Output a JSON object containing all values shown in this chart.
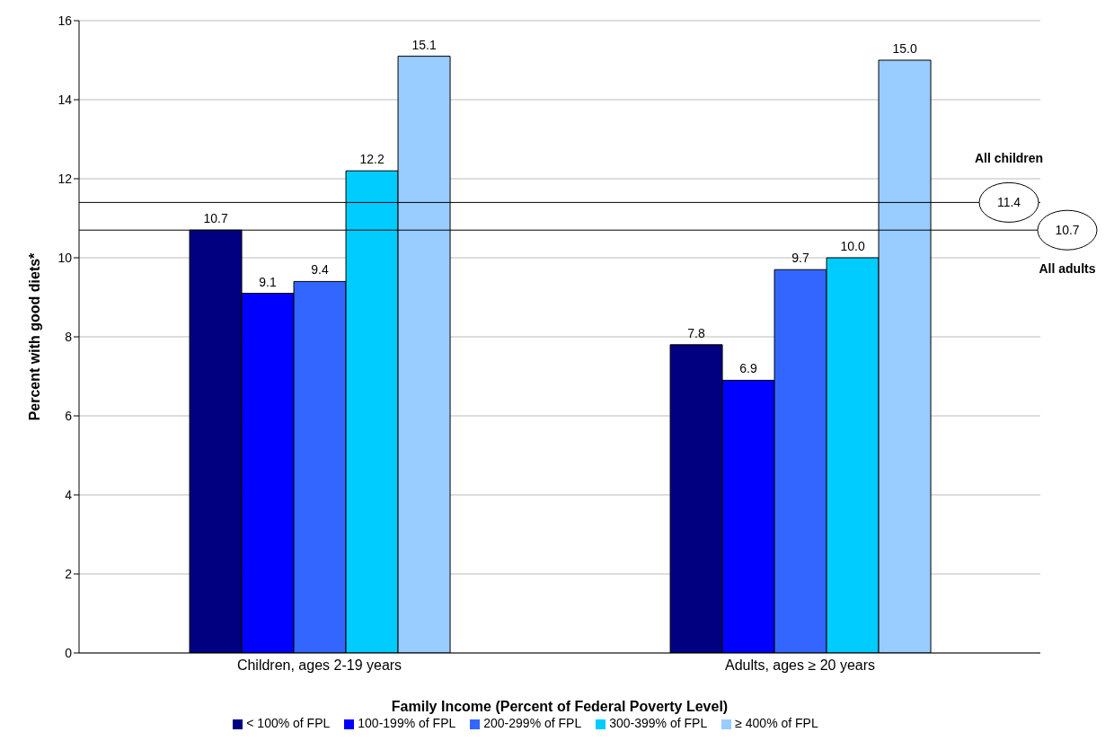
{
  "chart_data": {
    "type": "bar",
    "xlabel": "Family Income (Percent of Federal Poverty Level)",
    "ylabel": "Percent with good diets*",
    "categories": [
      "Children, ages 2-19 years",
      "Adults, ages ≥ 20 years"
    ],
    "series": [
      {
        "name": "< 100% of FPL",
        "color": "#000080",
        "values": [
          10.7,
          7.8
        ],
        "value_labels": [
          "10.7",
          "7.8"
        ]
      },
      {
        "name": "100-199% of FPL",
        "color": "#0000ff",
        "values": [
          9.1,
          6.9
        ],
        "value_labels": [
          "9.1",
          "6.9"
        ]
      },
      {
        "name": "200-299% of FPL",
        "color": "#3366ff",
        "values": [
          9.4,
          9.7
        ],
        "value_labels": [
          "9.4",
          "9.7"
        ]
      },
      {
        "name": "300-399% of FPL",
        "color": "#00ccff",
        "values": [
          12.2,
          10.0
        ],
        "value_labels": [
          "12.2",
          "10.0"
        ]
      },
      {
        "name": "≥ 400% of FPL",
        "color": "#99ccff",
        "values": [
          15.1,
          15.0
        ],
        "value_labels": [
          "15.1",
          "15.0"
        ]
      }
    ],
    "ylim": [
      0,
      16
    ],
    "yticks": [
      0,
      2,
      4,
      6,
      8,
      10,
      12,
      14,
      16
    ],
    "grid": "y",
    "legend": "bottom",
    "ref_lines": [
      {
        "axis": "y",
        "value": 11.4,
        "label": "11.4",
        "color": "#000000"
      },
      {
        "axis": "y",
        "value": 10.7,
        "label": "10.7",
        "color": "#000000"
      }
    ],
    "annotations": [
      "All children",
      "All adults"
    ]
  }
}
